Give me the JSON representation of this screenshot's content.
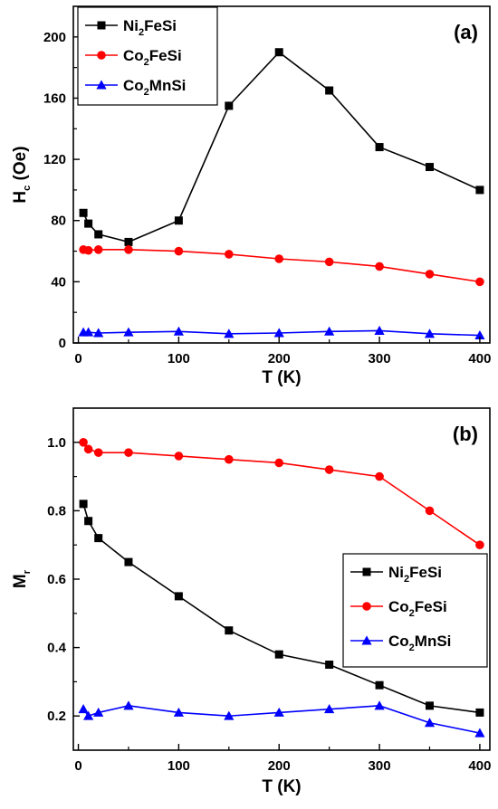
{
  "chart_data": [
    {
      "type": "line",
      "panel_label": "(a)",
      "xlabel": "T (K)",
      "ylabel": {
        "main": "H",
        "sub": "c",
        "rest": " (Oe)"
      },
      "xlim": [
        -5,
        410
      ],
      "ylim": [
        0,
        220
      ],
      "xticks": [
        0,
        100,
        200,
        300,
        400
      ],
      "yticks": [
        0,
        40,
        80,
        120,
        160,
        200
      ],
      "legend_position": "top-left",
      "series": [
        {
          "name": {
            "a": "Ni",
            "b": "2",
            "c": "FeSi"
          },
          "color": "#000000",
          "marker": "square",
          "x": [
            5,
            10,
            20,
            50,
            100,
            150,
            200,
            250,
            300,
            350,
            400
          ],
          "y": [
            85,
            78,
            71,
            66,
            80,
            155,
            190,
            165,
            128,
            115,
            100
          ]
        },
        {
          "name": {
            "a": "Co",
            "b": "2",
            "c": "FeSi"
          },
          "color": "#ff0000",
          "marker": "circle",
          "x": [
            5,
            10,
            20,
            50,
            100,
            150,
            200,
            250,
            300,
            350,
            400
          ],
          "y": [
            61,
            60.5,
            61,
            61,
            60,
            58,
            55,
            53,
            50,
            45,
            40
          ]
        },
        {
          "name": {
            "a": "Co",
            "b": "2",
            "c": "MnSi"
          },
          "color": "#0000ff",
          "marker": "triangle",
          "x": [
            5,
            10,
            20,
            50,
            100,
            150,
            200,
            250,
            300,
            350,
            400
          ],
          "y": [
            7,
            7,
            6.5,
            7,
            7.5,
            6,
            6.5,
            7.5,
            8,
            6,
            5
          ]
        }
      ]
    },
    {
      "type": "line",
      "panel_label": "(b)",
      "xlabel": "T (K)",
      "ylabel": {
        "main": "M",
        "sub": "r",
        "rest": ""
      },
      "xlim": [
        -5,
        410
      ],
      "ylim": [
        0.1,
        1.1
      ],
      "xticks": [
        0,
        100,
        200,
        300,
        400
      ],
      "yticks": [
        0.2,
        0.4,
        0.6,
        0.8,
        1.0
      ],
      "ytick_labels": [
        "0.2",
        "0.4",
        "0.6",
        "0.8",
        "1.0"
      ],
      "legend_position": "middle-right",
      "series": [
        {
          "name": {
            "a": "Ni",
            "b": "2",
            "c": "FeSi"
          },
          "color": "#000000",
          "marker": "square",
          "x": [
            5,
            10,
            20,
            50,
            100,
            150,
            200,
            250,
            300,
            350,
            400
          ],
          "y": [
            0.82,
            0.77,
            0.72,
            0.65,
            0.55,
            0.45,
            0.38,
            0.35,
            0.29,
            0.23,
            0.21
          ]
        },
        {
          "name": {
            "a": "Co",
            "b": "2",
            "c": "FeSi"
          },
          "color": "#ff0000",
          "marker": "circle",
          "x": [
            5,
            10,
            20,
            50,
            100,
            150,
            200,
            250,
            300,
            350,
            400
          ],
          "y": [
            1.0,
            0.98,
            0.97,
            0.97,
            0.96,
            0.95,
            0.94,
            0.92,
            0.9,
            0.8,
            0.7
          ]
        },
        {
          "name": {
            "a": "Co",
            "b": "2",
            "c": "MnSi"
          },
          "color": "#0000ff",
          "marker": "triangle",
          "x": [
            5,
            10,
            20,
            50,
            100,
            150,
            200,
            250,
            300,
            350,
            400
          ],
          "y": [
            0.22,
            0.2,
            0.21,
            0.23,
            0.21,
            0.2,
            0.21,
            0.22,
            0.23,
            0.18,
            0.15
          ]
        }
      ]
    }
  ]
}
